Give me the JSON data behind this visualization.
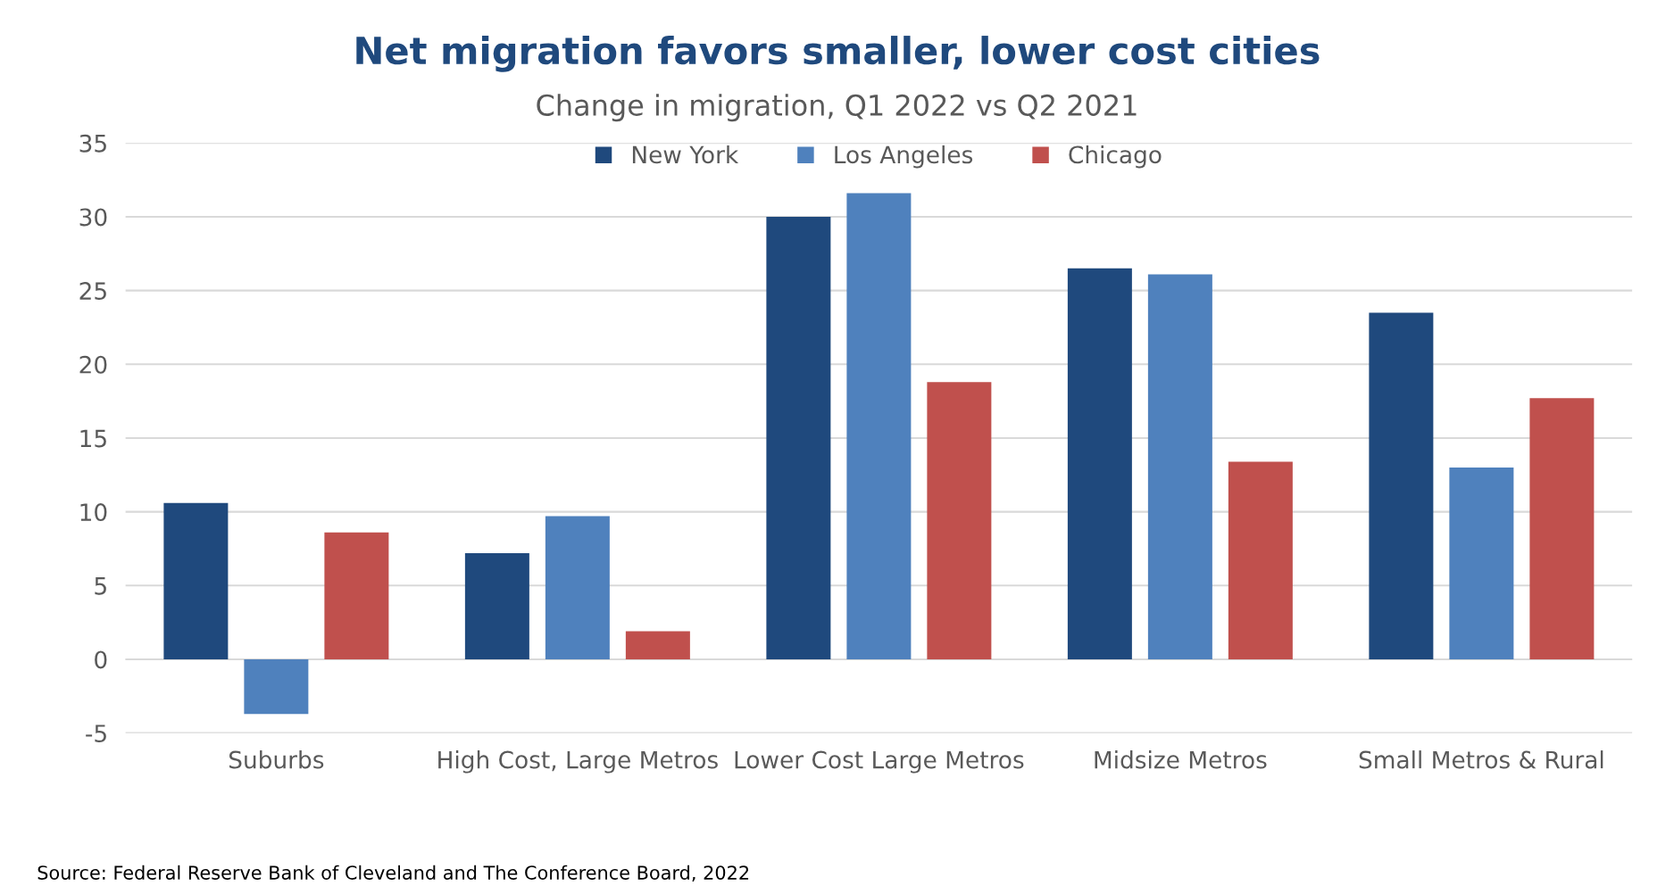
{
  "chart_data": {
    "type": "bar",
    "title": "Net migration favors smaller, lower cost cities",
    "subtitle": "Change in migration, Q1 2022 vs Q2 2021",
    "categories": [
      "Suburbs",
      "High Cost, Large Metros",
      "Lower Cost Large Metros",
      "Midsize Metros",
      "Small Metros & Rural"
    ],
    "series": [
      {
        "name": "New York",
        "color": "#1f497d",
        "values": [
          10.6,
          7.2,
          30.0,
          26.5,
          23.5
        ]
      },
      {
        "name": "Los Angeles",
        "color": "#4f81bd",
        "values": [
          -3.7,
          9.7,
          31.6,
          26.1,
          13.0
        ]
      },
      {
        "name": "Chicago",
        "color": "#c0504d",
        "values": [
          8.6,
          1.9,
          18.8,
          13.4,
          17.7
        ]
      }
    ],
    "ylim": [
      -5,
      35
    ],
    "yticks": [
      -5,
      0,
      5,
      10,
      15,
      20,
      25,
      30,
      35
    ],
    "grid": "y",
    "legend": "top",
    "annotations": [
      "Source: Federal Reserve Bank of Cleveland and The Conference Board, 2022"
    ]
  }
}
